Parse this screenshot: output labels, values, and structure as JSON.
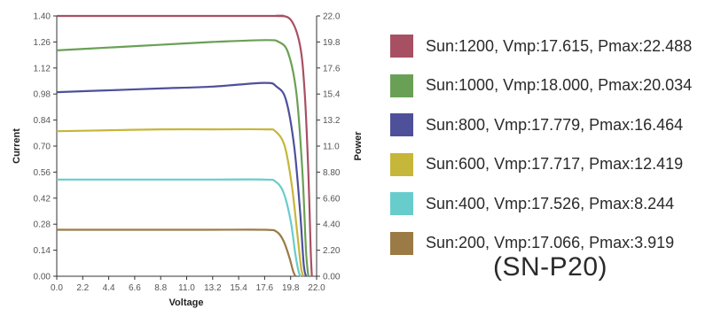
{
  "chart_data": {
    "type": "line",
    "xlabel": "Voltage",
    "ylabel": "Current",
    "y2label": "Power",
    "xlim": [
      0,
      22
    ],
    "ylim": [
      0,
      1.4
    ],
    "y2lim": [
      0,
      22
    ],
    "x_ticks": [
      "0.0",
      "2.2",
      "4.4",
      "6.6",
      "8.8",
      "11.0",
      "13.2",
      "15.4",
      "17.6",
      "19.8",
      "22.0"
    ],
    "y_ticks": [
      "0.00",
      "0.14",
      "0.28",
      "0.42",
      "0.56",
      "0.70",
      "0.84",
      "0.98",
      "1.12",
      "1.26",
      "1.40"
    ],
    "y2_ticks": [
      "0.00",
      "2.20",
      "4.40",
      "6.60",
      "8.80",
      "11.0",
      "13.2",
      "15.4",
      "17.6",
      "19.8",
      "22.0"
    ],
    "grid": false,
    "legend_position": "right",
    "series": [
      {
        "name": "Sun:1200, Vmp:17.615, Pmax:22.488",
        "color": "#a85063",
        "x": [
          0,
          17.6,
          18.6,
          19.8,
          20.6,
          21.0,
          21.3,
          21.5,
          21.6
        ],
        "y": [
          1.4,
          1.4,
          1.4,
          1.38,
          1.24,
          0.98,
          0.56,
          0.14,
          0.0
        ]
      },
      {
        "name": "Sun:1000, Vmp:18.000, Pmax:20.034",
        "color": "#6aa055",
        "x": [
          0,
          4.4,
          8.8,
          13.2,
          17.6,
          18.8,
          19.6,
          20.3,
          20.8,
          21.1,
          21.3
        ],
        "y": [
          1.215,
          1.23,
          1.245,
          1.26,
          1.27,
          1.26,
          1.2,
          0.98,
          0.56,
          0.14,
          0.0
        ]
      },
      {
        "name": "Sun:800, Vmp:17.779, Pmax:16.464",
        "color": "#4e509a",
        "x": [
          0,
          4.4,
          8.8,
          13.2,
          17.6,
          18.6,
          19.4,
          20.1,
          20.6,
          20.9,
          21.1
        ],
        "y": [
          0.99,
          1.0,
          1.01,
          1.02,
          1.04,
          1.02,
          0.95,
          0.7,
          0.35,
          0.07,
          0.0
        ]
      },
      {
        "name": "Sun:600, Vmp:17.717, Pmax:12.419",
        "color": "#c6b63a",
        "x": [
          0,
          4.4,
          8.8,
          13.2,
          17.6,
          18.5,
          19.3,
          19.9,
          20.4,
          20.7,
          20.9
        ],
        "y": [
          0.78,
          0.785,
          0.79,
          0.79,
          0.79,
          0.78,
          0.7,
          0.49,
          0.21,
          0.04,
          0.0
        ]
      },
      {
        "name": "Sun:400, Vmp:17.526, Pmax:8.244",
        "color": "#68cccc",
        "x": [
          0,
          4.4,
          8.8,
          13.2,
          17.6,
          18.5,
          19.2,
          19.8,
          20.2,
          20.5,
          20.7
        ],
        "y": [
          0.52,
          0.52,
          0.52,
          0.52,
          0.52,
          0.51,
          0.45,
          0.3,
          0.12,
          0.02,
          0.0
        ]
      },
      {
        "name": "Sun:200, Vmp:17.066, Pmax:3.919",
        "color": "#9b7a46",
        "x": [
          0,
          4.4,
          8.8,
          13.2,
          17.6,
          18.6,
          19.2,
          19.7,
          20.0,
          20.2
        ],
        "y": [
          0.25,
          0.25,
          0.25,
          0.25,
          0.25,
          0.24,
          0.19,
          0.1,
          0.03,
          0.0
        ]
      }
    ]
  },
  "model_label": "(SN-P20)"
}
